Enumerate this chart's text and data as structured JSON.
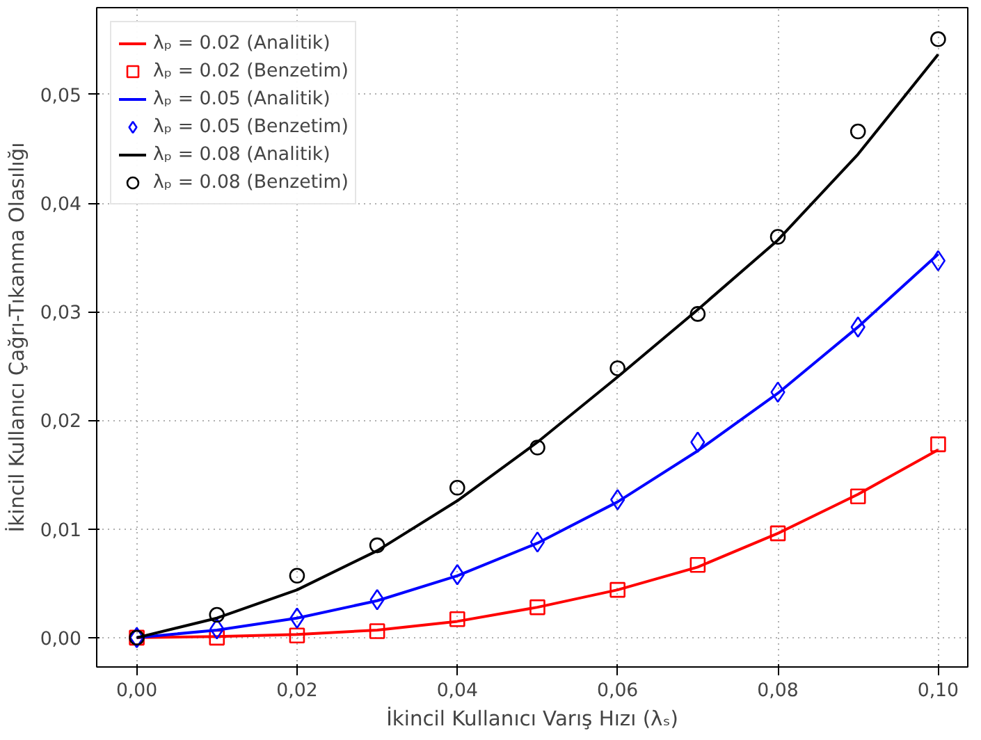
{
  "chart_data": {
    "type": "line",
    "xlabel": "İkincil Kullanıcı Varış Hızı (λₛ)",
    "ylabel": "İkincil Kullanıcı Çağrı-Tıkanma Olasılığı",
    "x": [
      0,
      0.01,
      0.02,
      0.03,
      0.04,
      0.05,
      0.06,
      0.07,
      0.08,
      0.09,
      0.1
    ],
    "xlim": [
      -0.005,
      0.1037
    ],
    "ylim": [
      -0.0027,
      0.058
    ],
    "xticks": [
      {
        "value": 0,
        "label": "0,00"
      },
      {
        "value": 0.02,
        "label": "0,02"
      },
      {
        "value": 0.04,
        "label": "0,04"
      },
      {
        "value": 0.06,
        "label": "0,06"
      },
      {
        "value": 0.08,
        "label": "0,08"
      },
      {
        "value": 0.1,
        "label": "0,10"
      }
    ],
    "yticks": [
      {
        "value": 0,
        "label": "0,00"
      },
      {
        "value": 0.01,
        "label": "0,01"
      },
      {
        "value": 0.02,
        "label": "0,02"
      },
      {
        "value": 0.03,
        "label": "0,03"
      },
      {
        "value": 0.04,
        "label": "0,04"
      },
      {
        "value": 0.05,
        "label": "0,05"
      }
    ],
    "grid": true,
    "legend": "top left",
    "series": [
      {
        "name": "λₚ = 0.02 (Analitik)",
        "type": "line",
        "line_style": "solid",
        "color": "#ff0000",
        "values": [
          0,
          0.0001,
          0.0003,
          0.0007,
          0.0015,
          0.0028,
          0.0044,
          0.0065,
          0.0096,
          0.0132,
          0.0173
        ]
      },
      {
        "name": "λₚ = 0.02 (Benzetim)",
        "type": "scatter",
        "marker": "square",
        "color": "#ff0000",
        "values": [
          0,
          0,
          0.0002,
          0.0006,
          0.0017,
          0.0028,
          0.0044,
          0.0067,
          0.0096,
          0.013,
          0.0178
        ]
      },
      {
        "name": "λₚ = 0.05 (Analitik)",
        "type": "line",
        "line_style": "solid",
        "color": "#0000ff",
        "values": [
          0,
          0.0007,
          0.0018,
          0.0034,
          0.0057,
          0.0087,
          0.0125,
          0.0172,
          0.0225,
          0.0286,
          0.0353
        ]
      },
      {
        "name": "λₚ = 0.05 (Benzetim)",
        "type": "scatter",
        "marker": "diamond",
        "color": "#0000ff",
        "values": [
          0,
          0.0008,
          0.0018,
          0.0035,
          0.0058,
          0.0088,
          0.0127,
          0.018,
          0.0226,
          0.0286,
          0.0347
        ]
      },
      {
        "name": "λₚ = 0.08 (Analitik)",
        "type": "line",
        "line_style": "solid",
        "color": "#000000",
        "values": [
          0,
          0.0018,
          0.0044,
          0.008,
          0.0126,
          0.018,
          0.024,
          0.0302,
          0.0366,
          0.0445,
          0.0537
        ]
      },
      {
        "name": "λₚ = 0.08 (Benzetim)",
        "type": "scatter",
        "marker": "circle",
        "color": "#000000",
        "values": [
          0,
          0.0021,
          0.0057,
          0.0085,
          0.0138,
          0.0175,
          0.0248,
          0.0298,
          0.0369,
          0.0466,
          0.0551
        ]
      }
    ]
  }
}
